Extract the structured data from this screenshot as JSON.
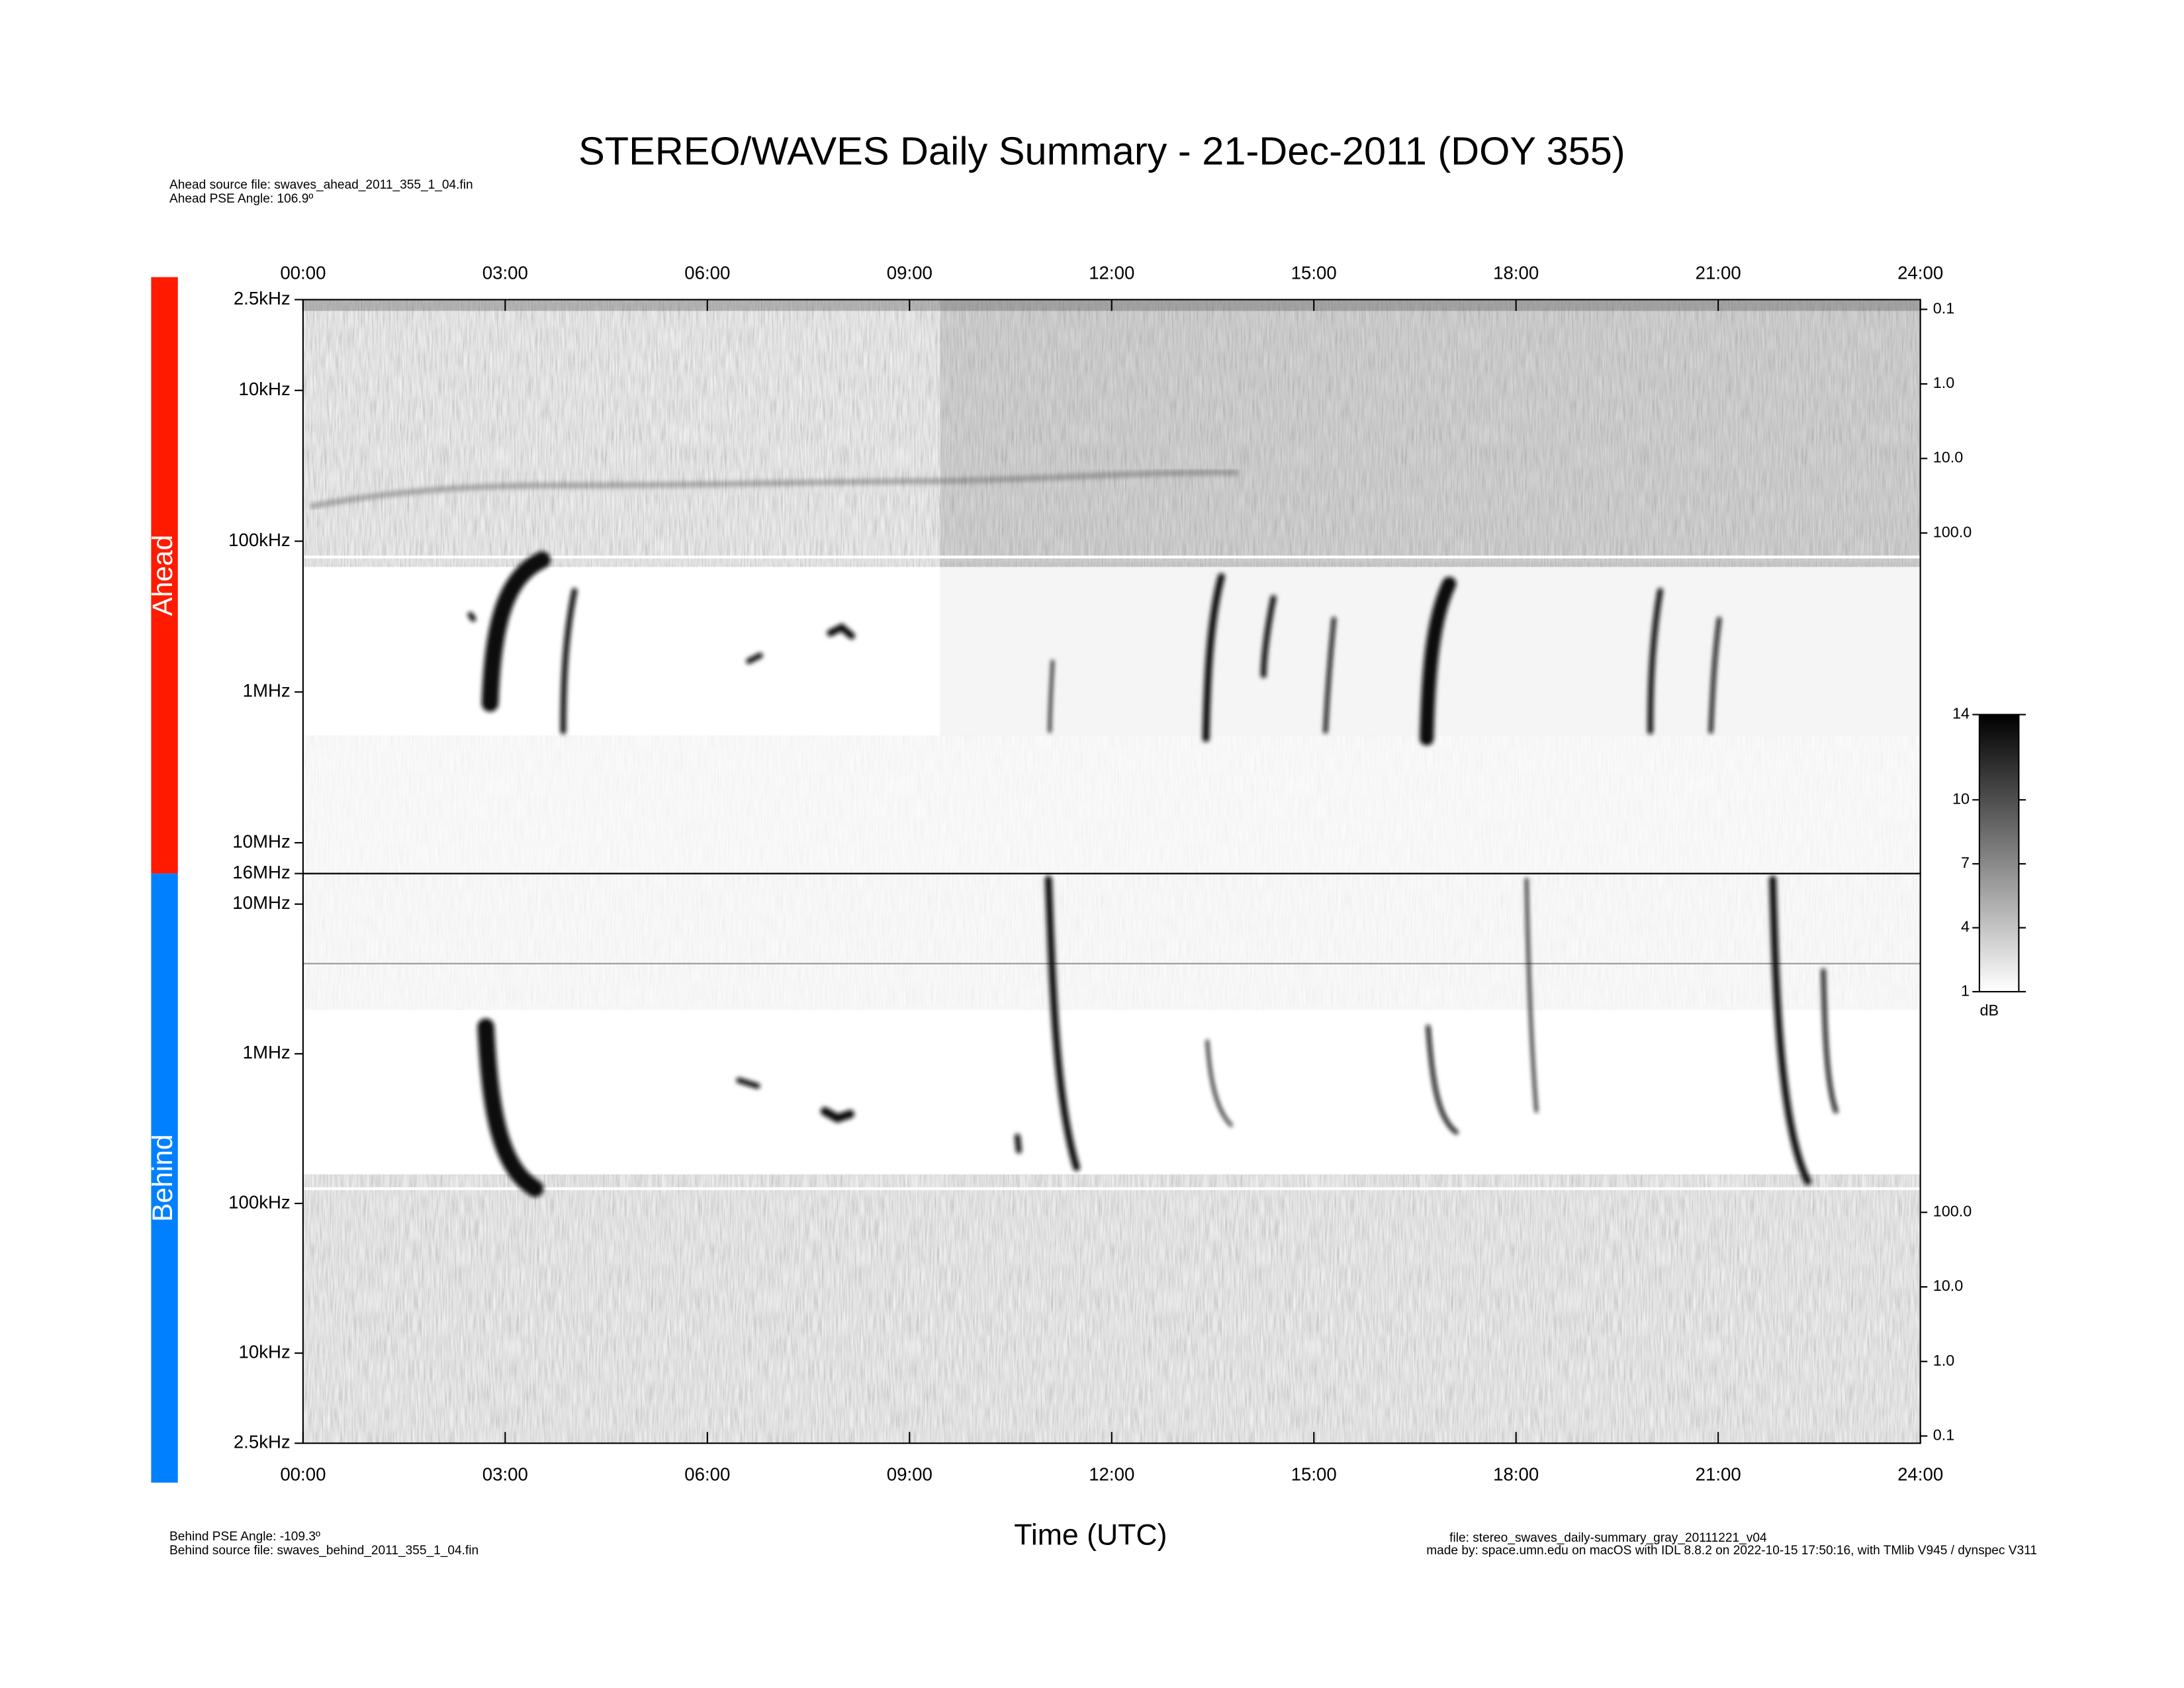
{
  "chart_data": {
    "type": "spectrogram",
    "title": "STEREO/WAVES Daily Summary - 21-Dec-2011 (DOY 355)",
    "ahead_source": "Ahead source file: swaves_ahead_2011_355_1_04.fin",
    "ahead_angle": "Ahead PSE Angle:  106.9º",
    "behind_angle": "Behind PSE Angle: -109.3º",
    "behind_source": "Behind source file: swaves_behind_2011_355_1_04.fin",
    "xlabel": "Time (UTC)",
    "file_note": "file: stereo_swaves_daily-summary_gray_20111221_v04",
    "made_by": "made by: space.umn.edu on macOS with IDL 8.8.2 on 2022-10-15 17:50:16, with TMlib V945 / dynspec V311",
    "xlim": [
      0,
      24
    ],
    "xticks": [
      {
        "value": 0,
        "label": "00:00"
      },
      {
        "value": 3,
        "label": "03:00"
      },
      {
        "value": 6,
        "label": "06:00"
      },
      {
        "value": 9,
        "label": "09:00"
      },
      {
        "value": 12,
        "label": "12:00"
      },
      {
        "value": 15,
        "label": "15:00"
      },
      {
        "value": 18,
        "label": "18:00"
      },
      {
        "value": 21,
        "label": "21:00"
      },
      {
        "value": 24,
        "label": "24:00"
      }
    ],
    "panels": [
      {
        "name": "Ahead",
        "color": "#ff1a00",
        "log_scale": true,
        "ylim": [
          16000000,
          2500
        ],
        "yticks": [
          {
            "value": 2500,
            "label": "2.5kHz"
          },
          {
            "value": 10000,
            "label": "10kHz"
          },
          {
            "value": 100000,
            "label": "100kHz"
          },
          {
            "value": 1000000,
            "label": "1MHz"
          },
          {
            "value": 10000000,
            "label": "10MHz"
          },
          {
            "value": 16000000,
            "label": "16MHz"
          }
        ],
        "y2lim": [
          3700000,
          0.074
        ],
        "y2ticks": [
          0.1,
          {
            "value": 1,
            "label": "1.0"
          },
          {
            "value": 10,
            "label": "10.0"
          },
          {
            "value": 100,
            "label": "100.0"
          }
        ]
      },
      {
        "name": "Behind",
        "color": "#0080ff",
        "log_scale": true,
        "ylim": [
          2500,
          16000000
        ],
        "yticks": [
          {
            "value": 10000000,
            "label": "10MHz"
          },
          {
            "value": 1000000,
            "label": "1MHz"
          },
          {
            "value": 100000,
            "label": "100kHz"
          },
          {
            "value": 10000,
            "label": "10kHz"
          },
          {
            "value": 2500,
            "label": "2.5kHz"
          }
        ],
        "y2lim": [
          0.08,
          3500000
        ],
        "y2ticks": [
          {
            "value": 100,
            "label": "100.0"
          },
          {
            "value": 10,
            "label": "10.0"
          },
          {
            "value": 1,
            "label": "1.0"
          },
          0.1
        ]
      }
    ],
    "colorbar": {
      "label": "dB",
      "ylim": [
        1,
        14
      ],
      "yticks": [
        1,
        4,
        7,
        10,
        14
      ]
    }
  }
}
